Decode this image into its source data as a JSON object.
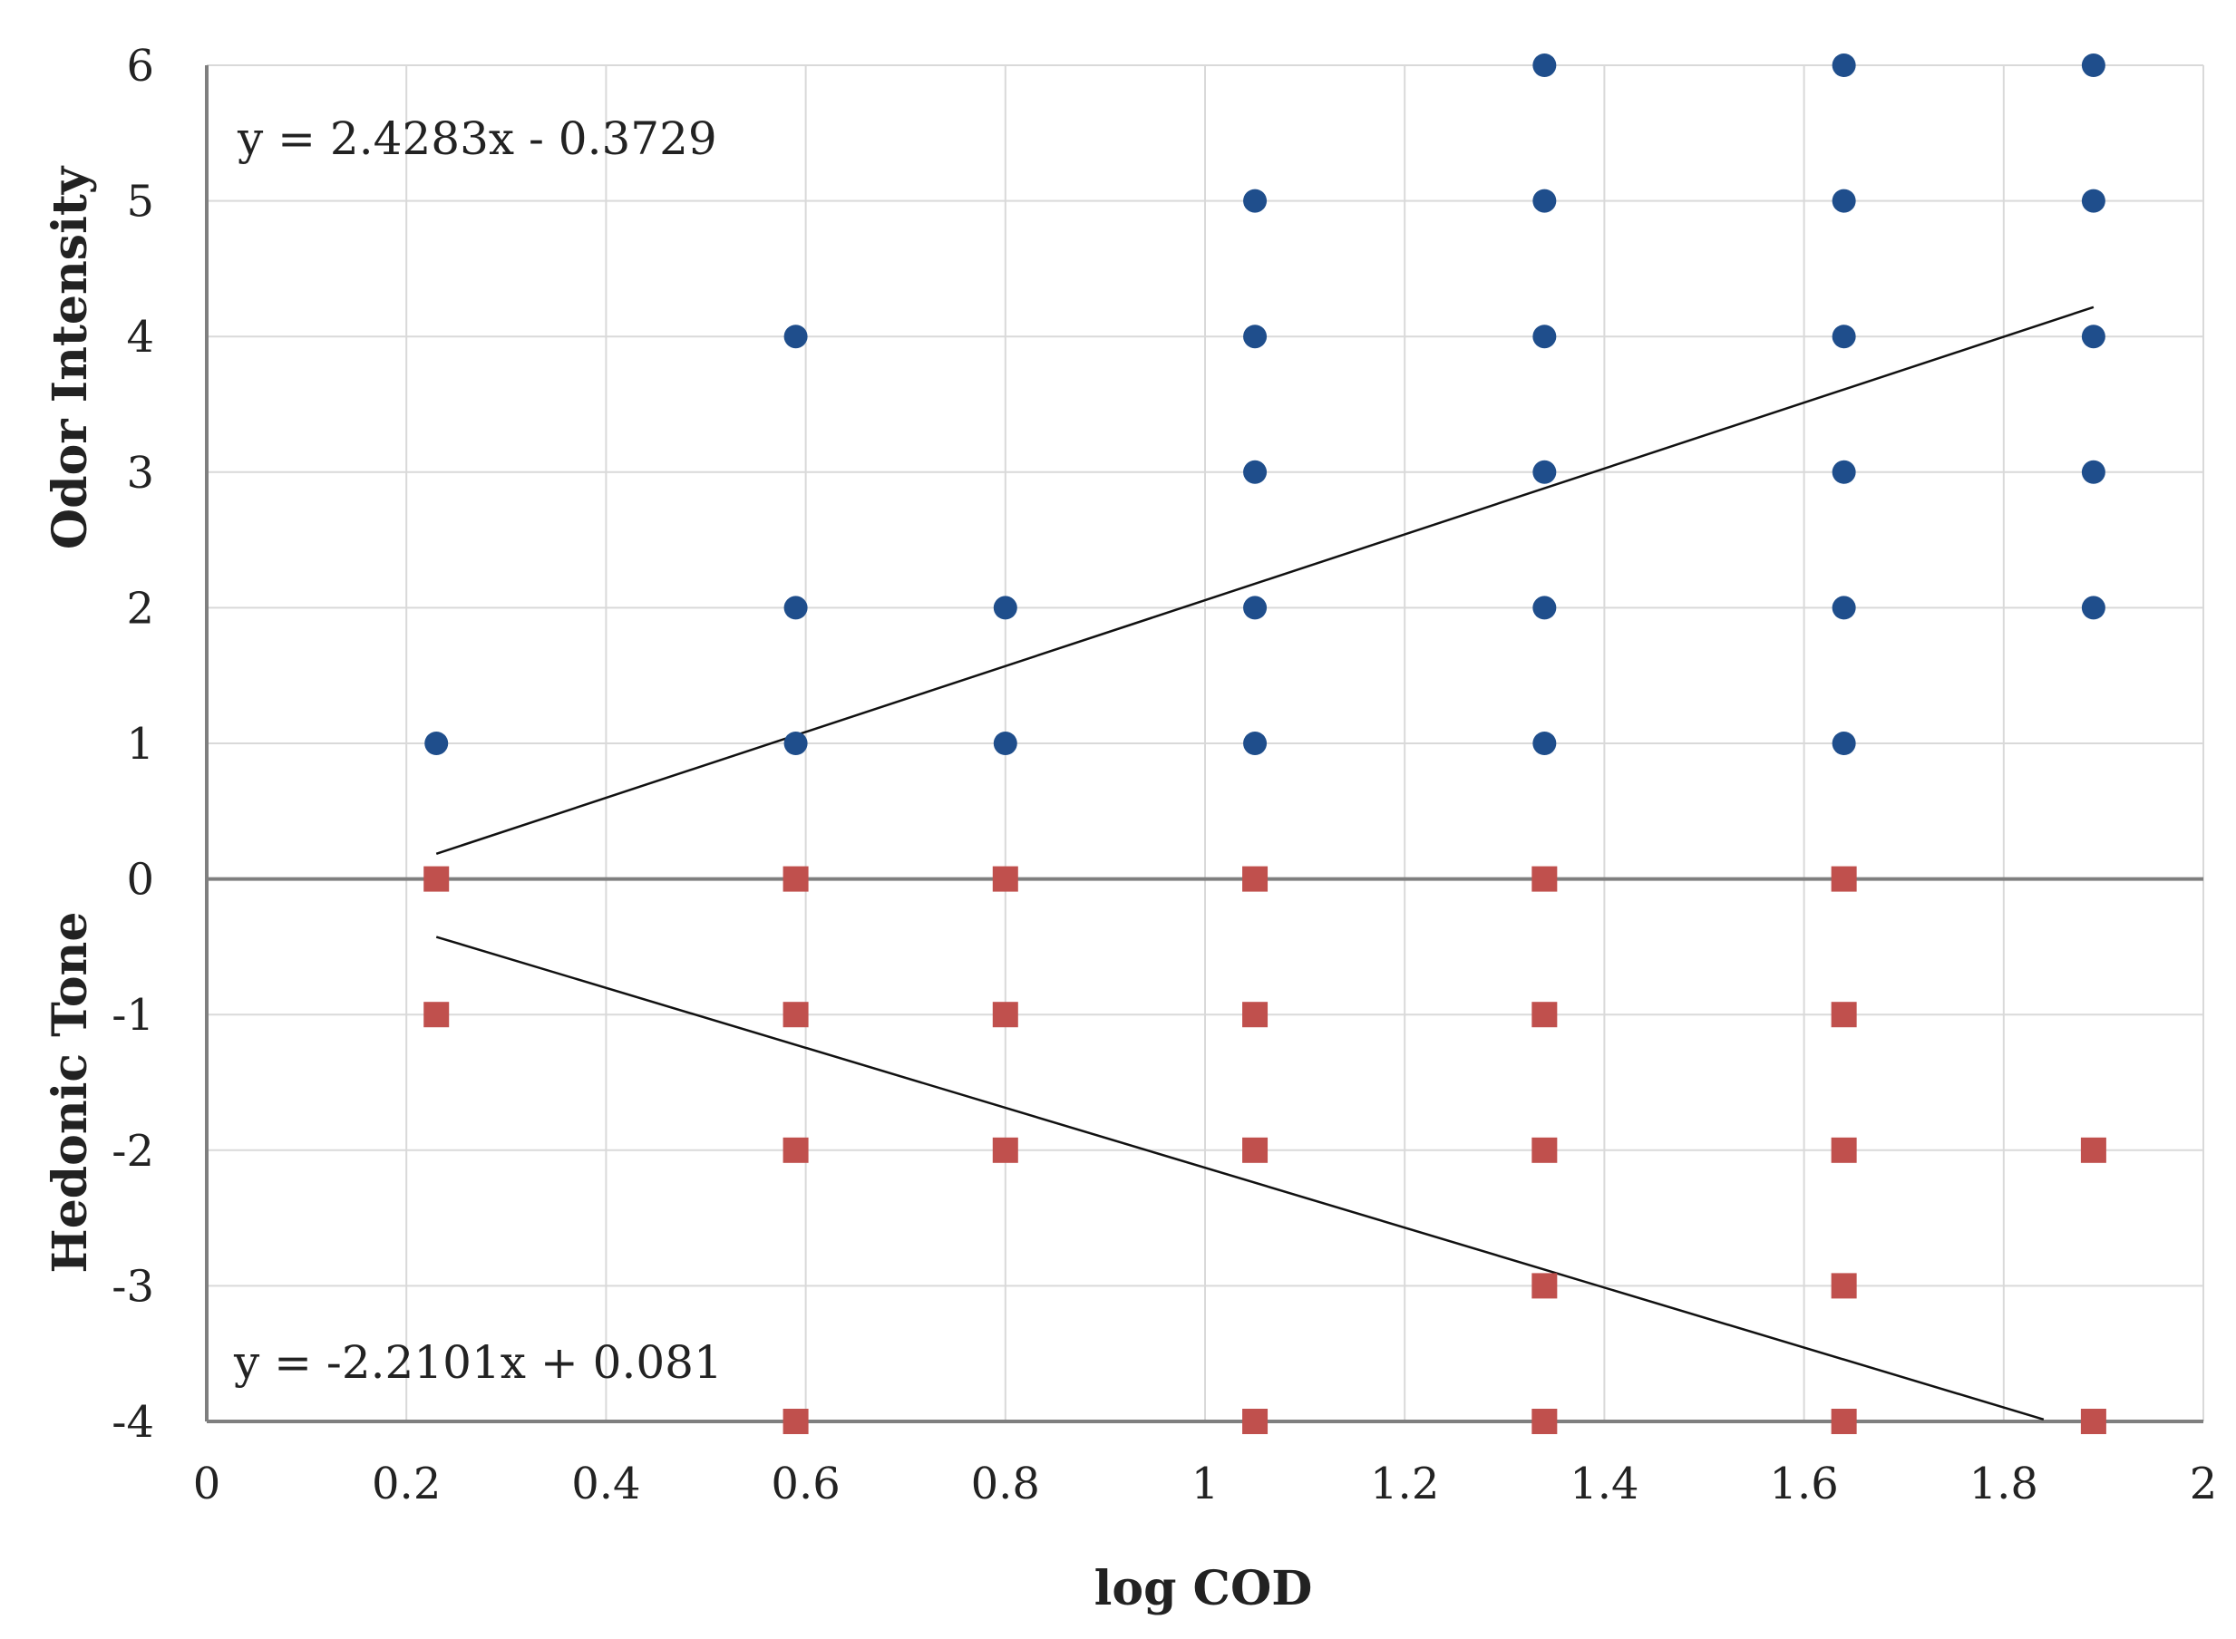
{
  "chart_data": {
    "type": "scatter",
    "title": "",
    "xlabel": "log COD",
    "ylabel_upper": "Odor Intensity",
    "ylabel_lower": "Hedonic Tone",
    "xlim": [
      0,
      2
    ],
    "ylim": [
      -4,
      6
    ],
    "x_ticks": [
      0,
      0.2,
      0.4,
      0.6,
      0.8,
      1,
      1.2,
      1.4,
      1.6,
      1.8,
      2
    ],
    "x_tick_labels": [
      "0",
      "0.2",
      "0.4",
      "0.6",
      "0.8",
      "1",
      "1.2",
      "1.4",
      "1.6",
      "1.8",
      "2"
    ],
    "y_ticks": [
      6,
      5,
      4,
      3,
      2,
      1,
      0,
      -1,
      -2,
      -3,
      -4
    ],
    "y_tick_labels": [
      "6",
      "5",
      "4",
      "3",
      "2",
      "1",
      "0",
      "-1",
      "-2",
      "-3",
      "-4"
    ],
    "grid": true,
    "series": [
      {
        "name": "Odor Intensity",
        "marker": "circle",
        "color": "#1f4e8c",
        "points": [
          [
            0.23,
            1
          ],
          [
            0.59,
            1
          ],
          [
            0.59,
            2
          ],
          [
            0.59,
            4
          ],
          [
            0.8,
            1
          ],
          [
            0.8,
            2
          ],
          [
            1.05,
            1
          ],
          [
            1.05,
            2
          ],
          [
            1.05,
            3
          ],
          [
            1.05,
            4
          ],
          [
            1.05,
            5
          ],
          [
            1.34,
            1
          ],
          [
            1.34,
            2
          ],
          [
            1.34,
            3
          ],
          [
            1.34,
            4
          ],
          [
            1.34,
            5
          ],
          [
            1.34,
            6
          ],
          [
            1.64,
            1
          ],
          [
            1.64,
            2
          ],
          [
            1.64,
            3
          ],
          [
            1.64,
            4
          ],
          [
            1.64,
            5
          ],
          [
            1.64,
            6
          ],
          [
            1.89,
            2
          ],
          [
            1.89,
            3
          ],
          [
            1.89,
            4
          ],
          [
            1.89,
            5
          ],
          [
            1.89,
            6
          ]
        ]
      },
      {
        "name": "Hedonic Tone",
        "marker": "square",
        "color": "#c0504d",
        "points": [
          [
            0.23,
            0
          ],
          [
            0.23,
            -1
          ],
          [
            0.59,
            0
          ],
          [
            0.59,
            -1
          ],
          [
            0.59,
            -2
          ],
          [
            0.59,
            -4
          ],
          [
            0.8,
            0
          ],
          [
            0.8,
            -1
          ],
          [
            0.8,
            -2
          ],
          [
            1.05,
            0
          ],
          [
            1.05,
            -1
          ],
          [
            1.05,
            -2
          ],
          [
            1.05,
            -4
          ],
          [
            1.34,
            0
          ],
          [
            1.34,
            -1
          ],
          [
            1.34,
            -2
          ],
          [
            1.34,
            -3
          ],
          [
            1.34,
            -4
          ],
          [
            1.64,
            0
          ],
          [
            1.64,
            -1
          ],
          [
            1.64,
            -2
          ],
          [
            1.64,
            -3
          ],
          [
            1.64,
            -4
          ],
          [
            1.89,
            -2
          ],
          [
            1.89,
            -4
          ]
        ]
      }
    ],
    "trendlines": [
      {
        "series": "Odor Intensity",
        "slope": 2.4283,
        "intercept": -0.3729,
        "x_range": [
          0.23,
          1.89
        ],
        "equation": "y = 2.4283x - 0.3729"
      },
      {
        "series": "Hedonic Tone",
        "slope": -2.2101,
        "intercept": 0.081,
        "x_range": [
          0.23,
          1.84
        ],
        "equation": "y = -2.2101x + 0.081"
      }
    ]
  }
}
